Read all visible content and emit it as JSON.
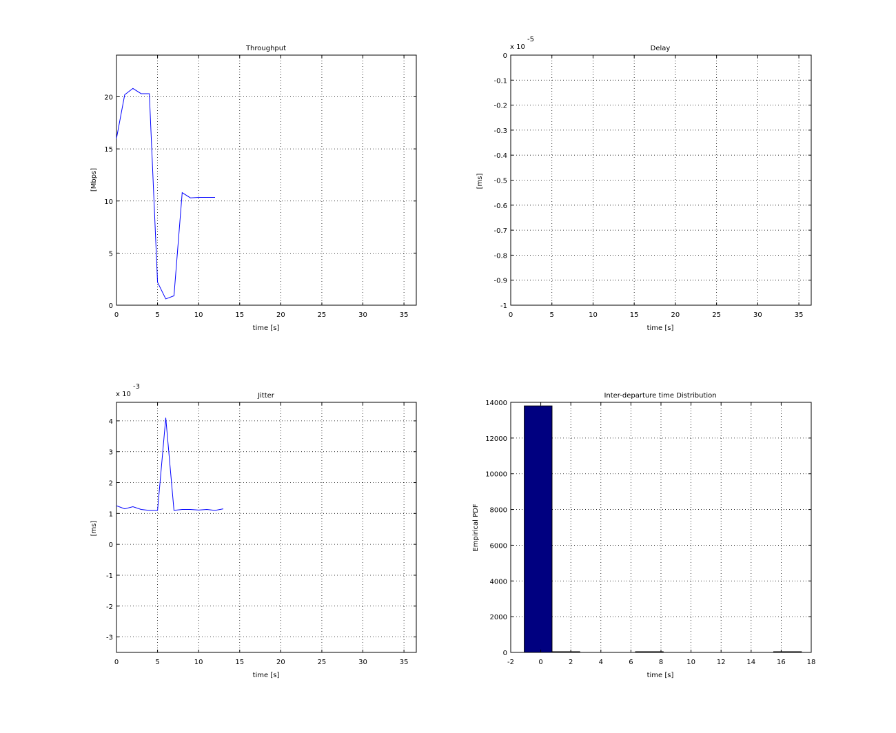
{
  "chart_data": [
    {
      "id": "throughput",
      "type": "line",
      "title": "Throughput",
      "xlabel": "time [s]",
      "ylabel": "[Mbps]",
      "xlim": [
        0,
        36.5
      ],
      "ylim": [
        0,
        24
      ],
      "xticks": [
        0,
        5,
        10,
        15,
        20,
        25,
        30,
        35
      ],
      "yticks": [
        0,
        5,
        10,
        15,
        20
      ],
      "ytick_labels": [
        "0",
        "5",
        "10",
        "15",
        "20"
      ],
      "exponent_label": "",
      "grid": true,
      "line_color": "#0000ff",
      "series": [
        {
          "x": [
            0,
            1,
            2,
            3,
            4,
            5,
            6,
            7,
            8,
            9,
            10,
            11,
            12
          ],
          "y": [
            16,
            20.2,
            20.8,
            20.3,
            20.3,
            2.2,
            0.6,
            0.9,
            10.8,
            10.3,
            10.35,
            10.35,
            10.35
          ]
        }
      ]
    },
    {
      "id": "delay",
      "type": "line",
      "title": "Delay",
      "xlabel": "time [s]",
      "ylabel": "[ms]",
      "xlim": [
        0,
        36.5
      ],
      "ylim": [
        -1.0,
        0.0
      ],
      "xticks": [
        0,
        5,
        10,
        15,
        20,
        25,
        30,
        35
      ],
      "yticks": [
        -1.0,
        -0.9,
        -0.8,
        -0.7,
        -0.6,
        -0.5,
        -0.4,
        -0.3,
        -0.2,
        -0.1,
        0.0
      ],
      "ytick_labels": [
        "-1",
        "-0.9",
        "-0.8",
        "-0.7",
        "-0.6",
        "-0.5",
        "-0.4",
        "-0.3",
        "-0.2",
        "-0.1",
        "0"
      ],
      "exponent_label": "x 10",
      "exponent_power": "-5",
      "grid": true,
      "line_color": "#0000ff",
      "series": []
    },
    {
      "id": "jitter",
      "type": "line",
      "title": "Jitter",
      "xlabel": "time [s]",
      "ylabel": "[ms]",
      "xlim": [
        0,
        36.5
      ],
      "ylim": [
        -3.5,
        4.6
      ],
      "xticks": [
        0,
        5,
        10,
        15,
        20,
        25,
        30,
        35
      ],
      "yticks": [
        -3,
        -2,
        -1,
        0,
        1,
        2,
        3,
        4
      ],
      "ytick_labels": [
        "-3",
        "-2",
        "-1",
        "0",
        "1",
        "2",
        "3",
        "4"
      ],
      "exponent_label": "x 10",
      "exponent_power": "-3",
      "grid": true,
      "line_color": "#0000ff",
      "series": [
        {
          "x": [
            0,
            1,
            2,
            3,
            4,
            5,
            6,
            7,
            8,
            9,
            10,
            11,
            12,
            13
          ],
          "y": [
            1.25,
            1.15,
            1.22,
            1.13,
            1.1,
            1.1,
            4.1,
            1.1,
            1.13,
            1.13,
            1.11,
            1.13,
            1.1,
            1.15
          ]
        }
      ]
    },
    {
      "id": "interdeparture",
      "type": "bar",
      "title": "Inter-departure time Distribution",
      "xlabel": "time [s]",
      "ylabel": "Empirical PDF",
      "xlim": [
        -2,
        18
      ],
      "ylim": [
        0,
        14000
      ],
      "xticks": [
        -2,
        0,
        2,
        4,
        6,
        8,
        10,
        12,
        14,
        16,
        18
      ],
      "yticks": [
        0,
        2000,
        4000,
        6000,
        8000,
        10000,
        12000,
        14000
      ],
      "ytick_labels": [
        "0",
        "2000",
        "4000",
        "6000",
        "8000",
        "10000",
        "12000",
        "14000"
      ],
      "exponent_label": "",
      "grid": true,
      "bar_color": "#000080",
      "bins": [
        {
          "x0": -1.1,
          "x1": 0.75,
          "value": 13800
        },
        {
          "x0": 0.75,
          "x1": 2.6,
          "value": 30
        },
        {
          "x0": 6.3,
          "x1": 8.15,
          "value": 10
        },
        {
          "x0": 15.5,
          "x1": 17.35,
          "value": 10
        }
      ]
    }
  ]
}
